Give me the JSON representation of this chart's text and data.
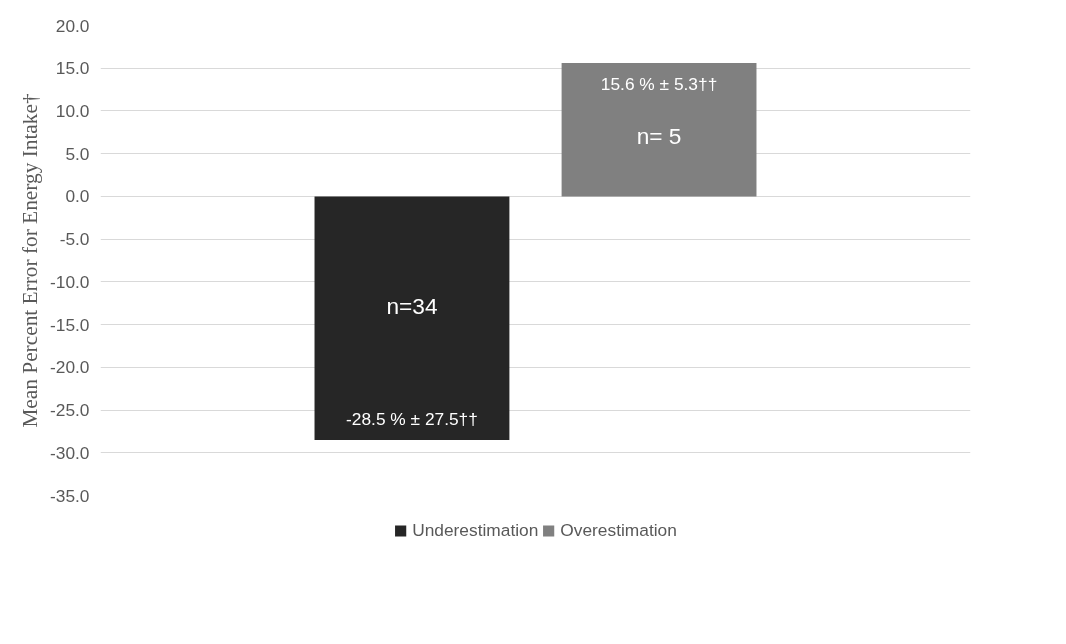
{
  "chart_data": {
    "type": "bar",
    "ylabel": "Mean Percent Error for Energy Intake†",
    "categories": [
      null
    ],
    "series": [
      {
        "name": "Underestimation",
        "color": "#262626",
        "values": [
          -28.5
        ],
        "value_labels": [
          "-28.5 % ± 27.5††"
        ]
      },
      {
        "name": "Overestimation",
        "color": "#808080",
        "values": [
          15.6
        ],
        "value_labels": [
          "15.6 % ± 5.3††"
        ]
      }
    ],
    "annotations": [
      "n=34",
      "n= 5"
    ],
    "ylim": [
      -35,
      20
    ],
    "yticks": [
      {
        "value": -35,
        "label": "-35.0"
      },
      {
        "value": -30,
        "label": "-30.0"
      },
      {
        "value": -25,
        "label": "-25.0"
      },
      {
        "value": -20,
        "label": "-20.0"
      },
      {
        "value": -15,
        "label": "-15.0"
      },
      {
        "value": -10,
        "label": "-10.0"
      },
      {
        "value": -5,
        "label": "-5.0"
      },
      {
        "value": 0,
        "label": "0.0"
      },
      {
        "value": 5,
        "label": "5.0"
      },
      {
        "value": 10,
        "label": "10.0"
      },
      {
        "value": 15,
        "label": "15.0"
      },
      {
        "value": 20,
        "label": "20.0"
      }
    ],
    "grid": "y",
    "legend": "bottom"
  }
}
